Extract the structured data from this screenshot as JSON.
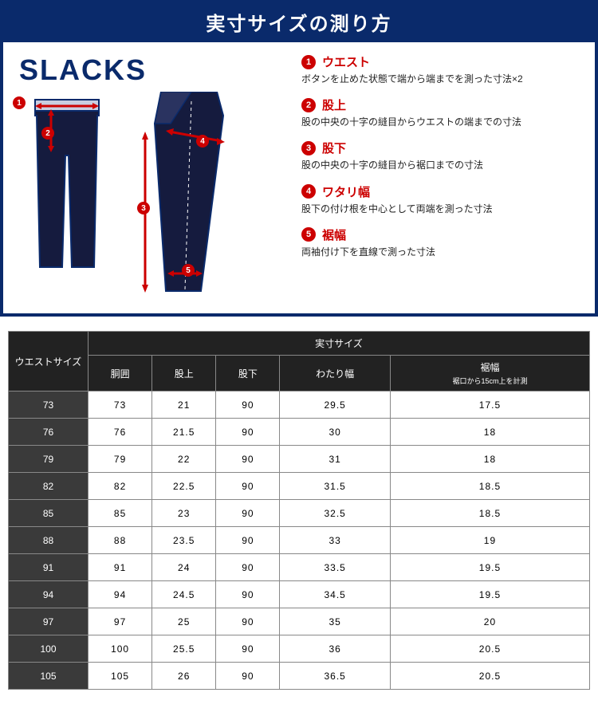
{
  "guide": {
    "title": "実寸サイズの測り方",
    "product_label": "SLACKS",
    "colors": {
      "navy": "#0a2a6b",
      "red": "#c00",
      "table_header_bg": "#222",
      "table_rowhead_bg": "#3a3a3a"
    },
    "measurements": [
      {
        "num": "1",
        "name": "ウエスト",
        "desc": "ボタンを止めた状態で端から端までを測った寸法×2"
      },
      {
        "num": "2",
        "name": "股上",
        "desc": "股の中央の十字の縫目からウエストの端までの寸法"
      },
      {
        "num": "3",
        "name": "股下",
        "desc": "股の中央の十字の縫目から裾口までの寸法"
      },
      {
        "num": "4",
        "name": "ワタリ幅",
        "desc": "股下の付け根を中心として両端を測った寸法"
      },
      {
        "num": "5",
        "name": "裾幅",
        "desc": "両袖付け下を直線で測った寸法"
      }
    ]
  },
  "table": {
    "corner_header": "ウエストサイズ",
    "group_header": "実寸サイズ",
    "columns": [
      {
        "label": "胴囲",
        "note": ""
      },
      {
        "label": "股上",
        "note": ""
      },
      {
        "label": "股下",
        "note": ""
      },
      {
        "label": "わたり幅",
        "note": ""
      },
      {
        "label": "裾幅",
        "note": "裾口から15cm上を計測"
      }
    ],
    "rows": [
      {
        "size": "73",
        "vals": [
          "73",
          "21",
          "90",
          "29.5",
          "17.5"
        ]
      },
      {
        "size": "76",
        "vals": [
          "76",
          "21.5",
          "90",
          "30",
          "18"
        ]
      },
      {
        "size": "79",
        "vals": [
          "79",
          "22",
          "90",
          "31",
          "18"
        ]
      },
      {
        "size": "82",
        "vals": [
          "82",
          "22.5",
          "90",
          "31.5",
          "18.5"
        ]
      },
      {
        "size": "85",
        "vals": [
          "85",
          "23",
          "90",
          "32.5",
          "18.5"
        ]
      },
      {
        "size": "88",
        "vals": [
          "88",
          "23.5",
          "90",
          "33",
          "19"
        ]
      },
      {
        "size": "91",
        "vals": [
          "91",
          "24",
          "90",
          "33.5",
          "19.5"
        ]
      },
      {
        "size": "94",
        "vals": [
          "94",
          "24.5",
          "90",
          "34.5",
          "19.5"
        ]
      },
      {
        "size": "97",
        "vals": [
          "97",
          "25",
          "90",
          "35",
          "20"
        ]
      },
      {
        "size": "100",
        "vals": [
          "100",
          "25.5",
          "90",
          "36",
          "20.5"
        ]
      },
      {
        "size": "105",
        "vals": [
          "105",
          "26",
          "90",
          "36.5",
          "20.5"
        ]
      }
    ]
  }
}
